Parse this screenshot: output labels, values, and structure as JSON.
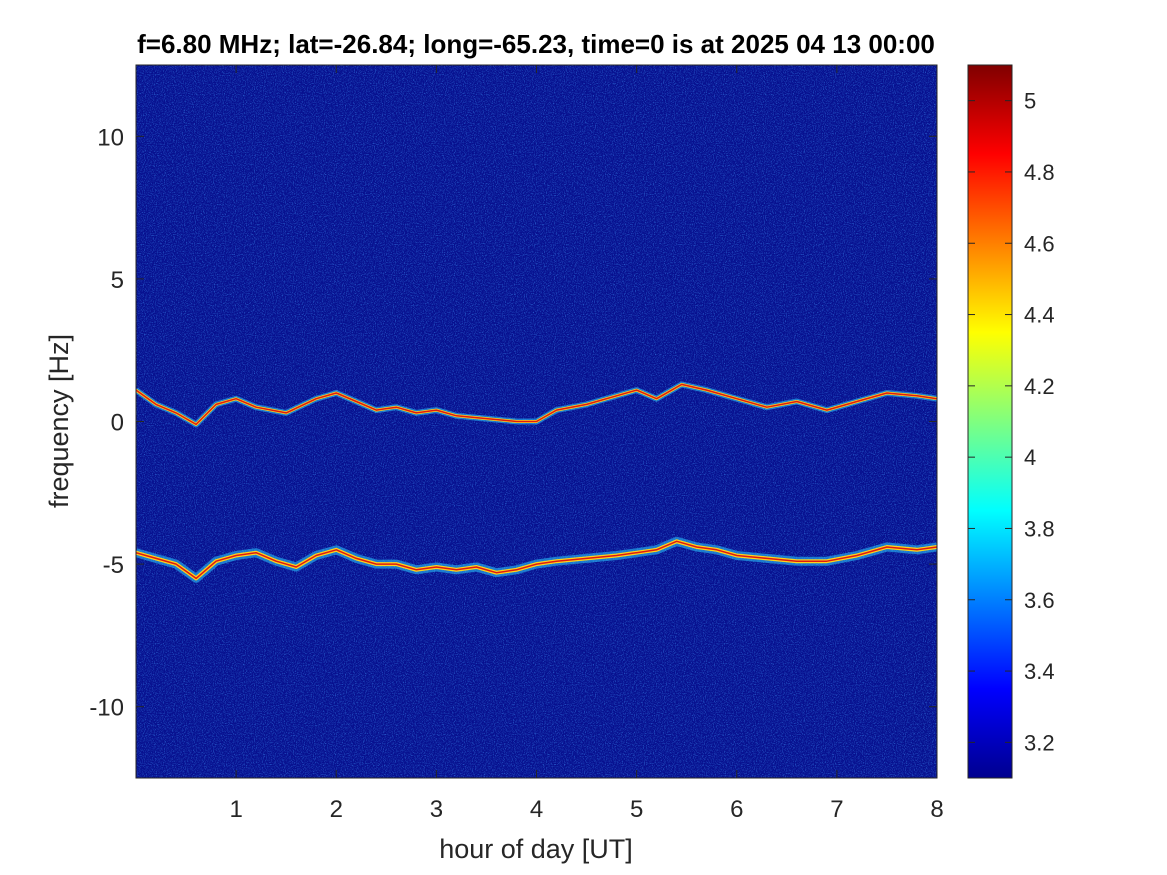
{
  "chart_data": {
    "type": "heatmap",
    "title": "f=6.80 MHz;  lat=-26.84; long=-65.23, time=0 is at 2025 04 13 00:00",
    "xlabel": "hour of day [UT]",
    "ylabel": "frequency [Hz]",
    "xlim": [
      0,
      8
    ],
    "ylim": [
      -12.5,
      12.5
    ],
    "xticks": [
      1,
      2,
      3,
      4,
      5,
      6,
      7,
      8
    ],
    "xtick_labels": [
      "1",
      "2",
      "3",
      "4",
      "5",
      "6",
      "7",
      "8"
    ],
    "yticks": [
      10,
      5,
      0,
      -5,
      -10
    ],
    "ytick_labels": [
      "10",
      "5",
      "0",
      "-5",
      "-10"
    ],
    "colormap": "jet",
    "clim": [
      3.1,
      5.1
    ],
    "colorbar_ticks": [
      5,
      4.8,
      4.6,
      4.4,
      4.2,
      4,
      3.8,
      3.6,
      3.4,
      3.2
    ],
    "colorbar_tick_labels": [
      "5",
      "4.8",
      "4.6",
      "4.4",
      "4.2",
      "4",
      "3.8",
      "3.6",
      "3.4",
      "3.2"
    ],
    "traces": [
      {
        "x": [
          0,
          0.2,
          0.4,
          0.6,
          0.8,
          1.0,
          1.2,
          1.5,
          1.8,
          2.0,
          2.2,
          2.4,
          2.6,
          2.8,
          3.0,
          3.2,
          3.5,
          3.8,
          4.0,
          4.2,
          4.5,
          4.8,
          5.0,
          5.2,
          5.45,
          5.7,
          6.0,
          6.3,
          6.6,
          6.9,
          7.2,
          7.5,
          7.8,
          8.0
        ],
        "y": [
          1.1,
          0.6,
          0.3,
          -0.1,
          0.6,
          0.8,
          0.5,
          0.3,
          0.8,
          1.0,
          0.7,
          0.4,
          0.5,
          0.3,
          0.4,
          0.2,
          0.1,
          0.0,
          0.0,
          0.4,
          0.6,
          0.9,
          1.1,
          0.8,
          1.3,
          1.1,
          0.8,
          0.5,
          0.7,
          0.4,
          0.7,
          1.0,
          0.9,
          0.8
        ]
      },
      {
        "x": [
          0,
          0.2,
          0.4,
          0.6,
          0.8,
          1.0,
          1.2,
          1.4,
          1.6,
          1.8,
          2.0,
          2.2,
          2.4,
          2.6,
          2.8,
          3.0,
          3.2,
          3.4,
          3.6,
          3.8,
          4.0,
          4.2,
          4.5,
          4.8,
          5.0,
          5.2,
          5.4,
          5.6,
          5.8,
          6.0,
          6.3,
          6.6,
          6.9,
          7.2,
          7.5,
          7.8,
          8.0
        ],
        "y": [
          -4.6,
          -4.8,
          -5.0,
          -5.5,
          -4.9,
          -4.7,
          -4.6,
          -4.9,
          -5.1,
          -4.7,
          -4.5,
          -4.8,
          -5.0,
          -5.0,
          -5.2,
          -5.1,
          -5.2,
          -5.1,
          -5.3,
          -5.2,
          -5.0,
          -4.9,
          -4.8,
          -4.7,
          -4.6,
          -4.5,
          -4.2,
          -4.4,
          -4.5,
          -4.7,
          -4.8,
          -4.9,
          -4.9,
          -4.7,
          -4.4,
          -4.5,
          -4.4
        ]
      }
    ]
  }
}
